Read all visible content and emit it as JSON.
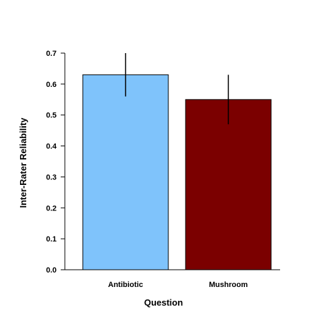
{
  "chart_data": {
    "type": "bar",
    "categories": [
      "Antibiotic",
      "Mushroom"
    ],
    "values": [
      0.63,
      0.55
    ],
    "error_low": [
      0.56,
      0.47
    ],
    "error_high": [
      0.7,
      0.63
    ],
    "colors": [
      "#7fc3fb",
      "#7b0000"
    ],
    "xlabel": "Question",
    "ylabel": "Inter-Rater Reliability",
    "ylim": [
      0,
      0.7
    ],
    "yticks": [
      "0.0",
      "0.1",
      "0.2",
      "0.3",
      "0.4",
      "0.5",
      "0.6",
      "0.7"
    ],
    "grid": false,
    "legend": "none"
  }
}
